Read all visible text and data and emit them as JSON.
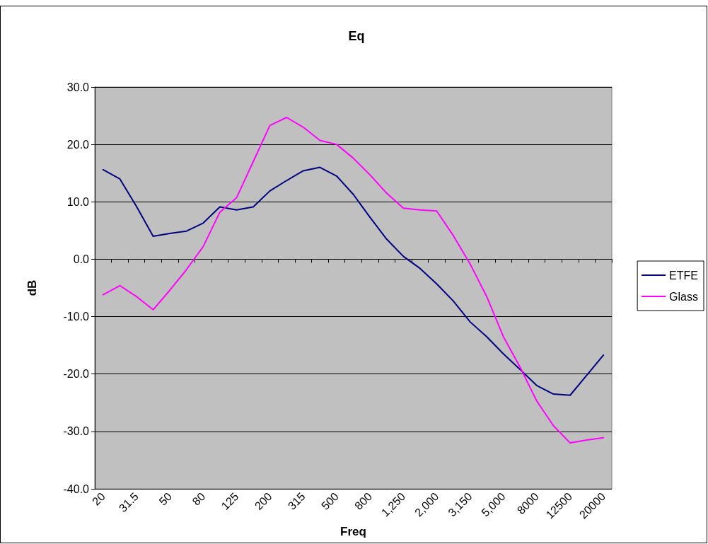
{
  "chart_data": {
    "type": "line",
    "title": "Eq",
    "xlabel": "Freq",
    "ylabel": "dB",
    "categories": [
      "20",
      null,
      "31.5",
      null,
      "50",
      null,
      "80",
      null,
      "125",
      null,
      "200",
      null,
      "315",
      null,
      "500",
      null,
      "800",
      null,
      "1,250",
      null,
      "2,000",
      null,
      "3,150",
      null,
      "5,000",
      null,
      "8000",
      null,
      "12500",
      null,
      "20000"
    ],
    "series": [
      {
        "name": "ETFE",
        "color": "#000080",
        "values": [
          15.6,
          14.0,
          9.2,
          4.0,
          4.5,
          4.9,
          6.3,
          9.1,
          8.6,
          9.1,
          11.9,
          13.7,
          15.4,
          16.0,
          14.5,
          11.3,
          7.3,
          3.5,
          0.5,
          -1.6,
          -4.3,
          -7.3,
          -10.9,
          -13.5,
          -16.5,
          -19.2,
          -22.0,
          -23.5,
          -23.7,
          -20.2,
          -16.7
        ]
      },
      {
        "name": "Glass",
        "color": "#ff00ff",
        "values": [
          -6.2,
          -4.6,
          -6.5,
          -8.8,
          -5.4,
          -1.8,
          2.2,
          8.2,
          10.7,
          17.0,
          23.3,
          24.7,
          23.0,
          20.7,
          20.0,
          17.6,
          14.7,
          11.5,
          8.9,
          8.6,
          8.4,
          4.1,
          -0.8,
          -6.5,
          -13.5,
          -18.8,
          -24.7,
          -29.0,
          -32.0,
          -31.5,
          -31.1
        ]
      }
    ],
    "ylim": [
      -40,
      30
    ],
    "yticks": [
      {
        "value": -40,
        "label": "-40.0"
      },
      {
        "value": -30,
        "label": "-30.0"
      },
      {
        "value": -20,
        "label": "-20.0"
      },
      {
        "value": -10,
        "label": "-10.0"
      },
      {
        "value": 0,
        "label": "0.0"
      },
      {
        "value": 10,
        "label": "10.0"
      },
      {
        "value": 20,
        "label": "20.0"
      },
      {
        "value": 30,
        "label": "30.0"
      }
    ],
    "grid": "y",
    "legend": "right",
    "marker": "none",
    "line_style": "solid"
  }
}
